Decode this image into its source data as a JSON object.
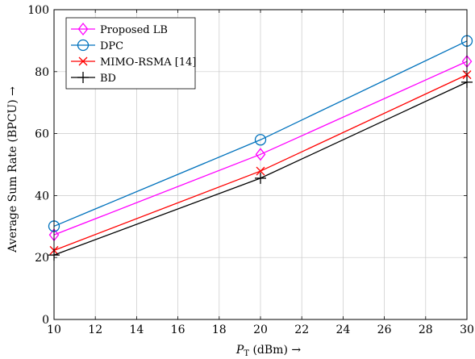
{
  "chart_data": {
    "type": "line",
    "xlabel_main": "P",
    "xlabel_sub": "T",
    "xlabel_rest": " (dBm)  →",
    "ylabel": "Average Sum Rate (BPCU)  →",
    "xlim": [
      10,
      30
    ],
    "ylim": [
      0,
      100
    ],
    "xticks": [
      10,
      12,
      14,
      16,
      18,
      20,
      22,
      24,
      26,
      28,
      30
    ],
    "yticks": [
      0,
      20,
      40,
      60,
      80,
      100
    ],
    "grid": true,
    "legend_position": "top-left",
    "series": [
      {
        "name": "Proposed LB",
        "color": "#ff00ff",
        "marker": "diamond",
        "x": [
          10,
          20,
          30
        ],
        "y": [
          27.3,
          53.3,
          83.3
        ]
      },
      {
        "name": "DPC",
        "color": "#0072bd",
        "marker": "circle",
        "x": [
          10,
          20,
          30
        ],
        "y": [
          30.1,
          58.0,
          89.9
        ]
      },
      {
        "name": "MIMO-RSMA [14]",
        "color": "#ff0000",
        "marker": "x",
        "x": [
          10,
          20,
          30
        ],
        "y": [
          22.3,
          47.9,
          79.0
        ]
      },
      {
        "name": "BD",
        "color": "#000000",
        "marker": "plus",
        "x": [
          10,
          20,
          30
        ],
        "y": [
          20.8,
          45.6,
          76.6
        ]
      }
    ]
  }
}
